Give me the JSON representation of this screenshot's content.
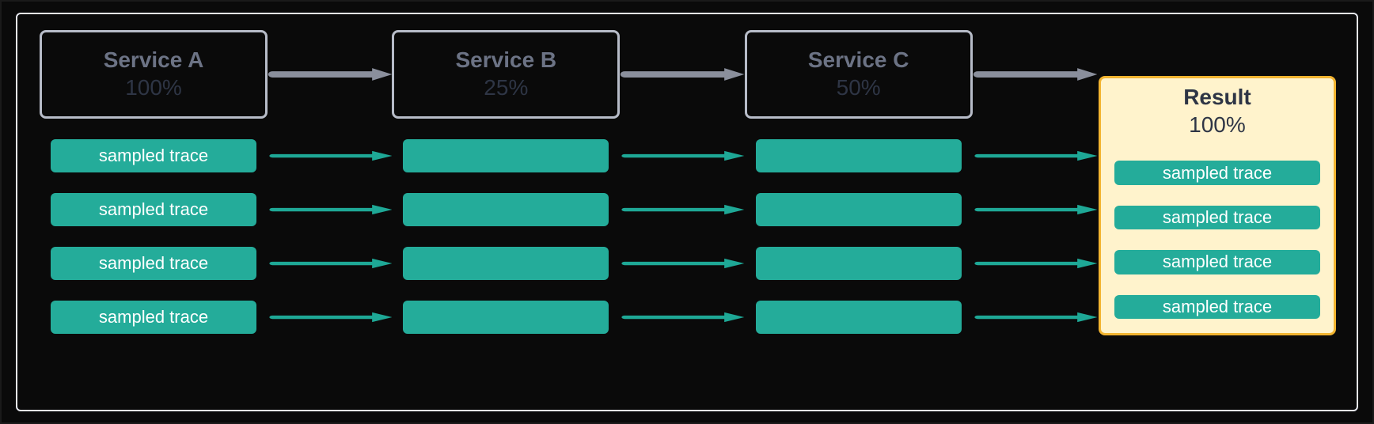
{
  "layout": {
    "outer_border_color": "#1a1a1a",
    "inner_frame_border_color": "#e6e8ef",
    "background_color": "#0a0a0a"
  },
  "columns": [
    {
      "id": "service-a",
      "title": "Service A",
      "pct": "100%",
      "box_border": "#b7bcc8",
      "title_color": "#6c7385",
      "pct_color": "#2e3545",
      "highlight": false
    },
    {
      "id": "service-b",
      "title": "Service B",
      "pct": "25%",
      "box_border": "#b7bcc8",
      "title_color": "#6c7385",
      "pct_color": "#2e3545",
      "highlight": false
    },
    {
      "id": "service-c",
      "title": "Service C",
      "pct": "50%",
      "box_border": "#b7bcc8",
      "title_color": "#6c7385",
      "pct_color": "#2e3545",
      "highlight": false
    },
    {
      "id": "result",
      "title": "Result",
      "pct": "100%",
      "box_border": "#f2b430",
      "title_color": "#2e3545",
      "pct_color": "#2e3545",
      "highlight": true,
      "highlight_bg": "#fff3cc"
    }
  ],
  "header_arrow": {
    "color": "#8a8f9c",
    "stroke_width": 7
  },
  "trace_arrow": {
    "color": "#1ea896",
    "stroke_width": 5
  },
  "trace_pill": {
    "bg": "#24ac9a",
    "text_color": "#ffffff",
    "radius": 6
  },
  "rows": [
    {
      "labels": [
        "sampled trace",
        "",
        "",
        "sampled trace"
      ]
    },
    {
      "labels": [
        "sampled trace",
        "",
        "",
        "sampled trace"
      ]
    },
    {
      "labels": [
        "sampled trace",
        "",
        "",
        "sampled trace"
      ]
    },
    {
      "labels": [
        "sampled trace",
        "",
        "",
        "sampled trace"
      ]
    }
  ],
  "typography": {
    "title_fontsize": 28,
    "pct_fontsize": 28,
    "pill_fontsize": 22,
    "title_fontweight": 700,
    "pct_fontweight": 400
  }
}
